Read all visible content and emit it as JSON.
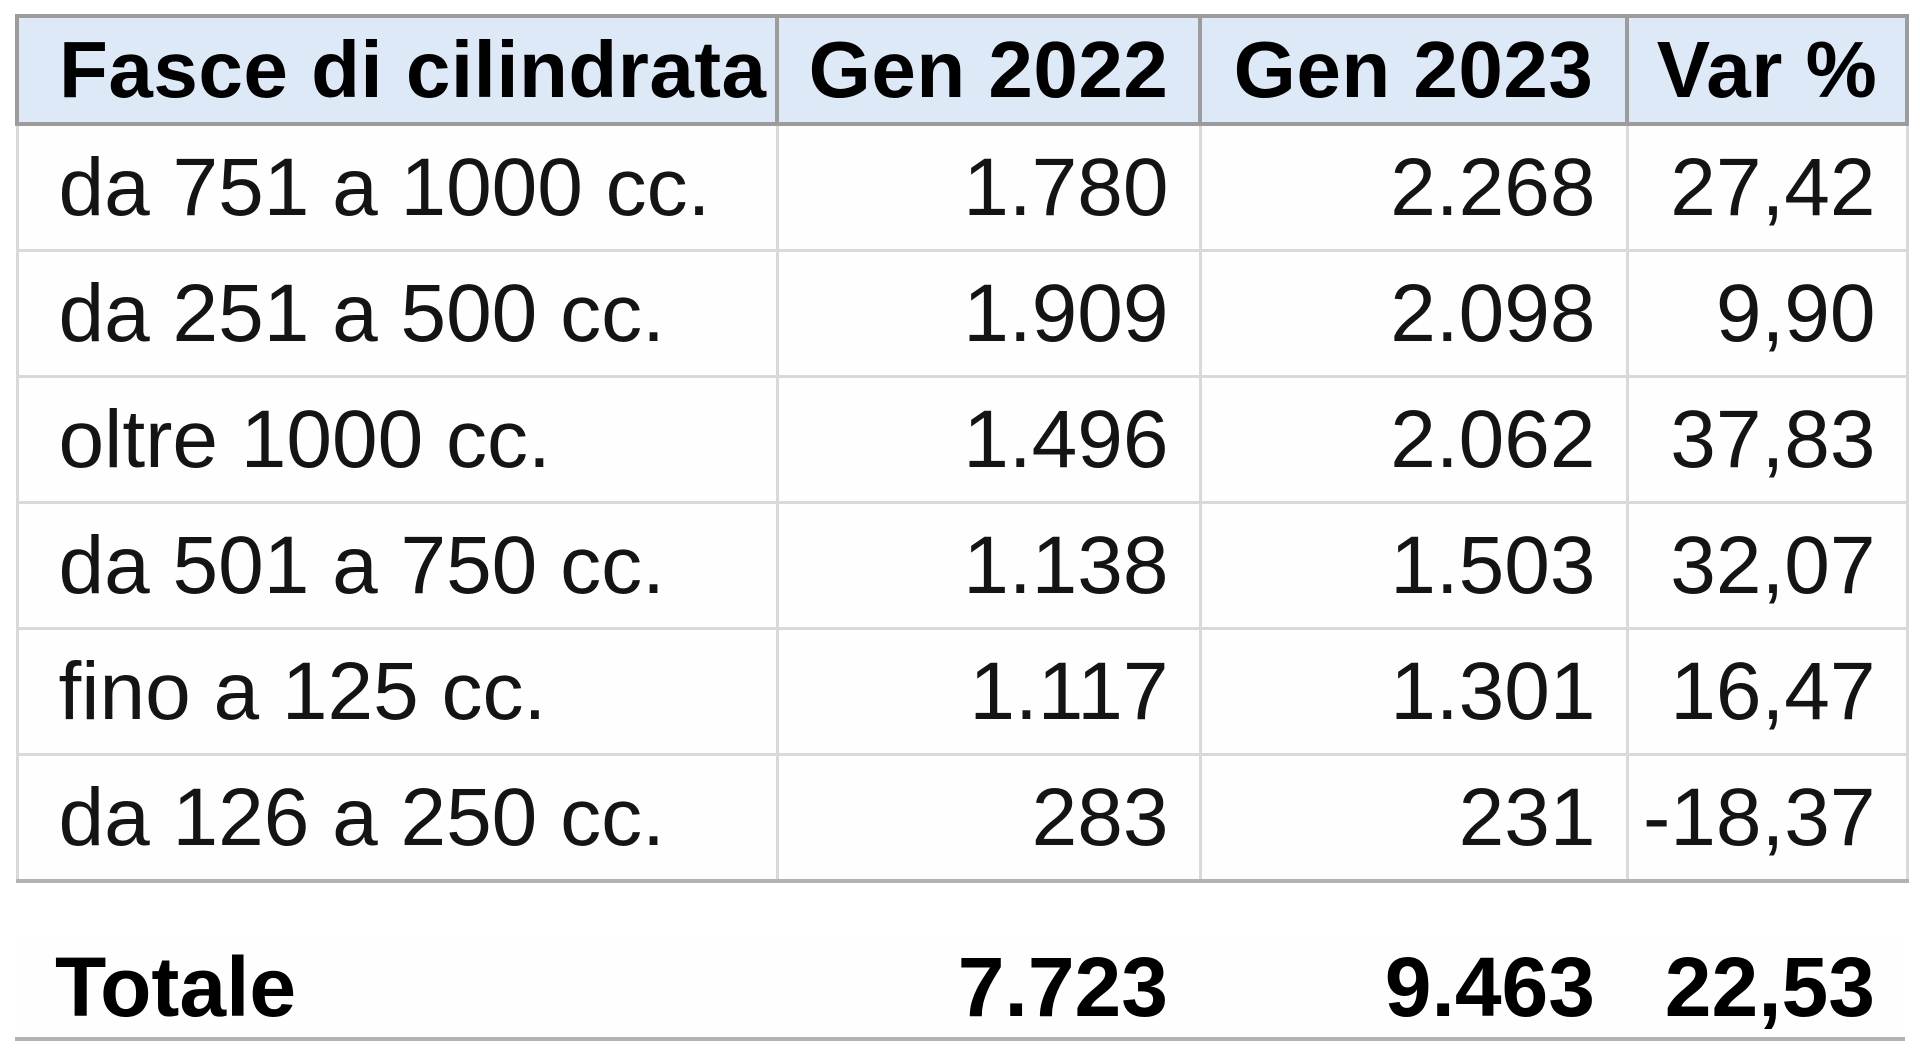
{
  "colors": {
    "header_bg": "#dee9f7",
    "header_border": "#9c9c9c",
    "body_border": "#d9d9d9",
    "text": "#101010"
  },
  "chart_data": {
    "type": "table",
    "columns": [
      "Fasce di cilindrata",
      "Gen 2022",
      "Gen 2023",
      "Var %"
    ],
    "rows": [
      [
        "da 751 a 1000 cc.",
        "1.780",
        "2.268",
        "27,42"
      ],
      [
        "da 251 a 500 cc.",
        "1.909",
        "2.098",
        "9,90"
      ],
      [
        "oltre 1000 cc.",
        "1.496",
        "2.062",
        "37,83"
      ],
      [
        "da 501 a 750 cc.",
        "1.138",
        "1.503",
        "32,07"
      ],
      [
        "fino a 125 cc.",
        "1.117",
        "1.301",
        "16,47"
      ],
      [
        "da 126 a 250 cc.",
        "283",
        "231",
        "-18,37"
      ]
    ],
    "total_row": [
      "Totale",
      "7.723",
      "9.463",
      "22,53"
    ],
    "numeric": {
      "gen_2022": [
        1780,
        1909,
        1496,
        1138,
        1117,
        283
      ],
      "gen_2023": [
        2268,
        2098,
        2062,
        1503,
        1301,
        231
      ],
      "var_pct": [
        27.42,
        9.9,
        37.83,
        32.07,
        16.47,
        -18.37
      ],
      "totals": {
        "gen_2022": 7723,
        "gen_2023": 9463,
        "var_pct": 22.53
      }
    },
    "layout": {
      "grid": true,
      "header_style": "light-blue band",
      "number_alignment": "right"
    }
  }
}
